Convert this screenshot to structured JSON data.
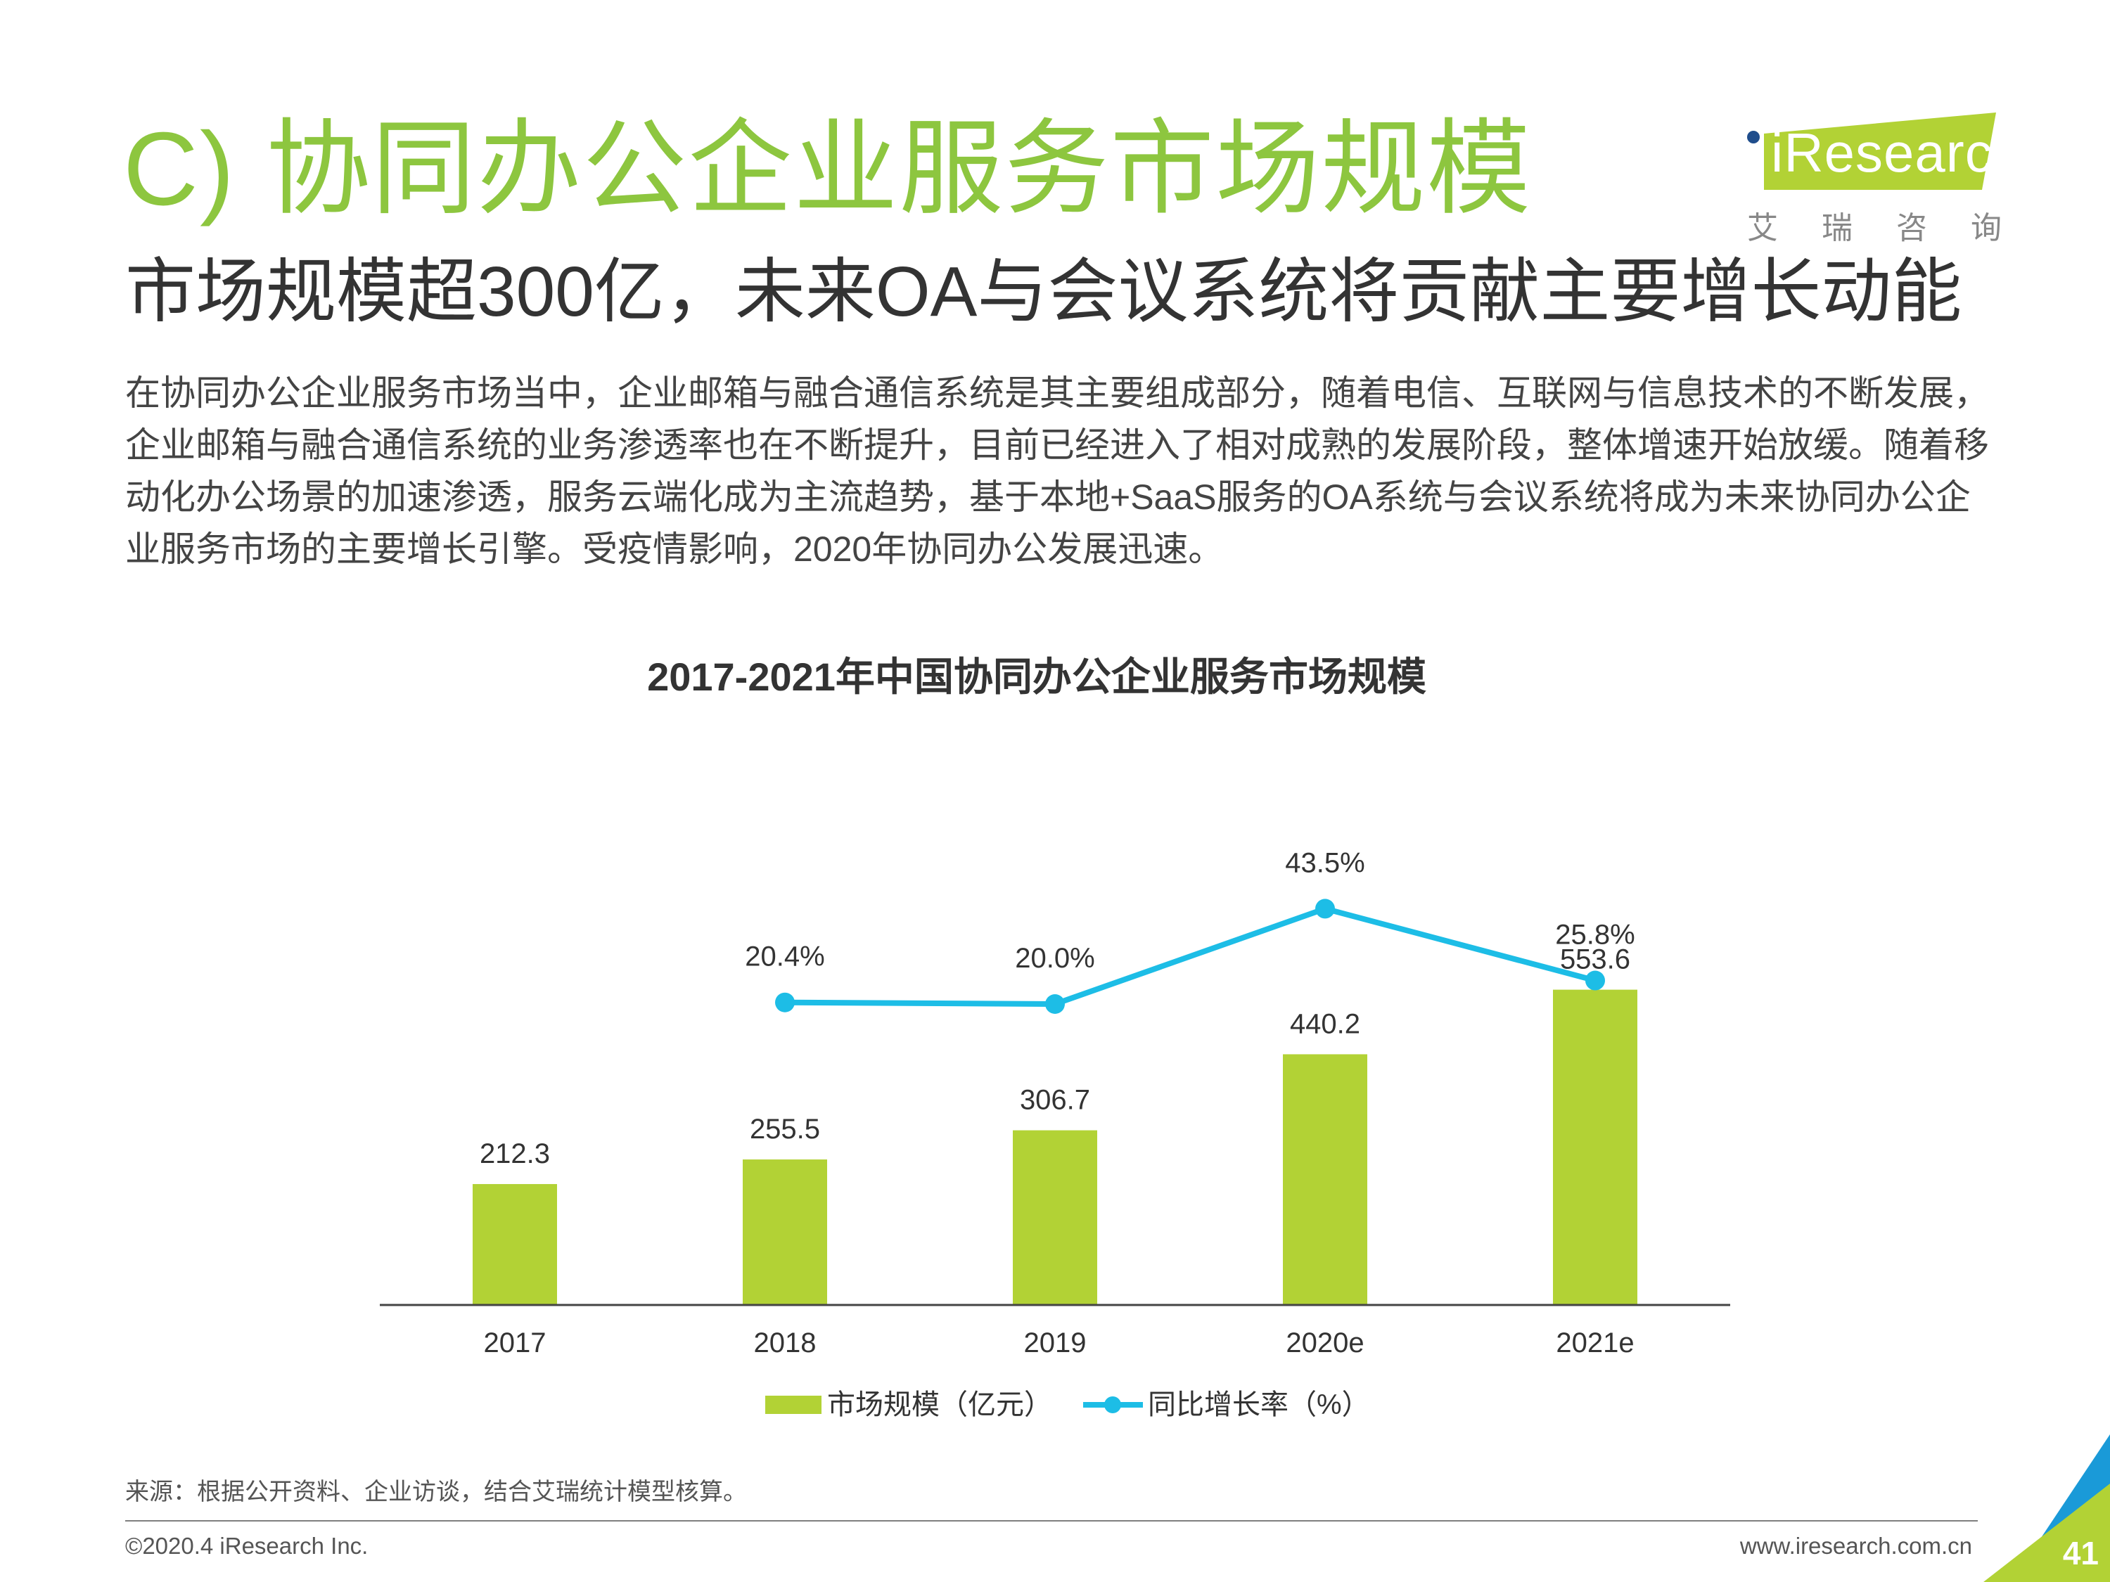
{
  "header": {
    "title": "C) 协同办公企业服务市场规模",
    "subtitle": "市场规模超300亿，未来OA与会议系统将贡献主要增长动能"
  },
  "logo": {
    "brand": "iResearch",
    "cn_name": "艾瑞咨询"
  },
  "body_lines": [
    "在协同办公企业服务市场当中，企业邮箱与融合通信系统是其主要组成部分，随着电信、互联网与信息技术的不断发展，",
    "企业邮箱与融合通信系统的业务渗透率也在不断提升，目前已经进入了相对成熟的发展阶段，整体增速开始放缓。随着移",
    "动化办公场景的加速渗透，服务云端化成为主流趋势，基于本地+SaaS服务的OA系统与会议系统将成为未来协同办公企",
    "业服务市场的主要增长引擎。受疫情影响，2020年协同办公发展迅速。"
  ],
  "chart_data": {
    "type": "bar",
    "title": "2017-2021年中国协同办公企业服务市场规模",
    "categories": [
      "2017",
      "2018",
      "2019",
      "2020e",
      "2021e"
    ],
    "series": [
      {
        "name": "市场规模（亿元）",
        "type": "bar",
        "values": [
          212.3,
          255.5,
          306.7,
          440.2,
          553.6
        ],
        "labels": [
          "212.3",
          "255.5",
          "306.7",
          "440.2",
          "553.6"
        ]
      },
      {
        "name": "同比增长率（%）",
        "type": "line",
        "values": [
          null,
          20.4,
          20.0,
          43.5,
          25.8
        ],
        "labels": [
          "",
          "20.4%",
          "20.0%",
          "43.5%",
          "25.8%"
        ]
      }
    ],
    "legend_position": "bottom",
    "grid": false
  },
  "colors": {
    "title_green": "#8dc63f",
    "bar": "#b2d235",
    "line": "#1dbde6",
    "logo_green": "#b2d235",
    "corner_blue": "#1a9ad8"
  },
  "footer": {
    "source": "来源：根据公开资料、企业访谈，结合艾瑞统计模型核算。",
    "copyright": "©2020.4 iResearch Inc.",
    "website": "www.iresearch.com.cn",
    "page_number": "41"
  }
}
